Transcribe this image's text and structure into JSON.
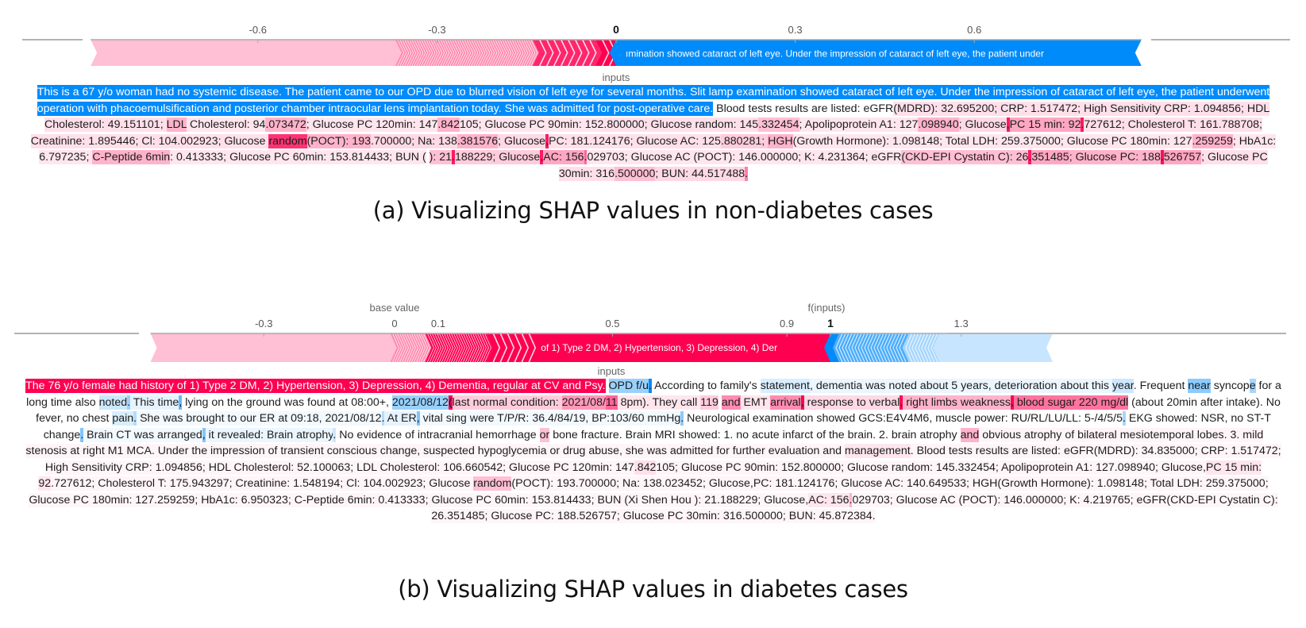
{
  "chart_data": [
    {
      "type": "force_plot",
      "id": "a",
      "caption": "(a) Visualizing SHAP values in non-diabetes cases",
      "axis_ticks": [
        {
          "value": -0.6,
          "label": "-0.6",
          "bold": false
        },
        {
          "value": -0.3,
          "label": "-0.3",
          "bold": false
        },
        {
          "value": 0,
          "label": "0",
          "bold": true
        },
        {
          "value": 0.3,
          "label": "0.3",
          "bold": false
        },
        {
          "value": 0.6,
          "label": "0.6",
          "bold": false
        }
      ],
      "xlim": [
        -0.88,
        0.88
      ],
      "output_value": 0,
      "base_value_label": "",
      "f_inputs_label": "",
      "inputs_label": "inputs",
      "positive_color": "#ff0051",
      "negative_color": "#008bfb",
      "positive_segments": [
        {
          "from": -0.88,
          "to": -0.37,
          "shade": 0.25,
          "style": "solid"
        },
        {
          "from": -0.37,
          "to": -0.14,
          "shade": 0.45,
          "style": "dense-chevrons"
        },
        {
          "from": -0.14,
          "to": -0.035,
          "shade": 0.85,
          "style": "chevrons"
        },
        {
          "from": -0.035,
          "to": 0.0,
          "shade": 1.0,
          "style": "chevrons"
        }
      ],
      "negative_segments": [
        {
          "from": 0.0,
          "to": 0.88,
          "shade": 1.0,
          "style": "solid",
          "label": "ımination showed cataract of left eye. Under the impression of cataract of left eye, the patient under"
        }
      ],
      "text_tokens": [
        {
          "t": "This is a 67 y/o woman had no systemic disease. The patient came to our OPD due to blurred vision of left eye for several months. Slit lamp examination showed cataract of left eye. Under the impression of cataract of left eye, the patient underwent operation with phacoemulsification and posterior chamber intraocular lens implantation today. She was admitted for post-operative care.",
          "v": -1.0
        },
        {
          "t": " Blood tests results are listed: eGFR",
          "v": 0
        },
        {
          "t": "(MDRD): 32.695200; CRP: 1.517472; High Sensitivity CRP: 1.094856; HDL Cholesterol: 49.151101; ",
          "v": 0.12
        },
        {
          "t": "LDL",
          "v": 0.3
        },
        {
          "t": " Cholesterol: 94",
          "v": 0.1
        },
        {
          "t": ".073472",
          "v": 0.3
        },
        {
          "t": "; Glucose PC 120min: 147",
          "v": 0.1
        },
        {
          "t": ".842",
          "v": 0.3
        },
        {
          "t": "105; Glucose PC 90min: 152",
          "v": 0.1
        },
        {
          "t": ".800000; Glucose random: 145",
          "v": 0.12
        },
        {
          "t": ".332454",
          "v": 0.25
        },
        {
          "t": "; Apolipoprotein A1: 127",
          "v": 0.1
        },
        {
          "t": ".098940",
          "v": 0.3
        },
        {
          "t": "; Glucose",
          "v": 0.15
        },
        {
          "t": ",",
          "v": 0.9
        },
        {
          "t": "PC 15 min: 92",
          "v": 0.35
        },
        {
          "t": ".",
          "v": 0.9
        },
        {
          "t": "727612; Cholesterol T: 161.788708; Creatinine: 1.895446; Cl: 104.002923; Glucose ",
          "v": 0.12
        },
        {
          "t": "random",
          "v": 0.8
        },
        {
          "t": "(POCT): 193",
          "v": 0.3
        },
        {
          "t": ".700000; Na: 138",
          "v": 0.15
        },
        {
          "t": ".381576",
          "v": 0.3
        },
        {
          "t": "; Glucose",
          "v": 0.15
        },
        {
          "t": ",",
          "v": 0.9
        },
        {
          "t": "PC: 181.124176; Glucose AC: 125",
          "v": 0.12
        },
        {
          "t": ".880281; ",
          "v": 0.2
        },
        {
          "t": "HGH",
          "v": 0.3
        },
        {
          "t": "(Growth Hormone): 1.098148; Total LDH: 259.375000; Glucose PC 180min: 127",
          "v": 0.1
        },
        {
          "t": ".259259",
          "v": 0.3
        },
        {
          "t": "; HbA1c: 6.797235; ",
          "v": 0.1
        },
        {
          "t": "C-Peptide 6min",
          "v": 0.3
        },
        {
          "t": ": 0.413333; Glucose PC 60min: 153.814433; BUN (",
          "v": 0.1
        },
        {
          "t": "                    ",
          "v": 0
        },
        {
          "t": "): 21",
          "v": 0.25
        },
        {
          "t": ".",
          "v": 0.9
        },
        {
          "t": "188229; Glucose",
          "v": 0.2
        },
        {
          "t": ",",
          "v": 0.9
        },
        {
          "t": "AC: 156",
          "v": 0.35
        },
        {
          "t": ".",
          "v": 0.6
        },
        {
          "t": "029703; Glucose AC (POCT): 146.000000; K: 4.231364; eGFR",
          "v": 0.1
        },
        {
          "t": "(CKD-EPI Cystatin C): 26",
          "v": 0.25
        },
        {
          "t": ".",
          "v": 0.9
        },
        {
          "t": "351485",
          "v": 0.35
        },
        {
          "t": "; Glucose PC: 188",
          "v": 0.3
        },
        {
          "t": ".",
          "v": 0.95
        },
        {
          "t": "526757",
          "v": 0.35
        },
        {
          "t": "; Glucose PC 30min: 316",
          "v": 0.12
        },
        {
          "t": ".500000",
          "v": 0.25
        },
        {
          "t": "; BUN: 44.517488",
          "v": 0.15
        },
        {
          "t": ".",
          "v": 0.5
        }
      ]
    },
    {
      "type": "force_plot",
      "id": "b",
      "caption": "(b) Visualizing SHAP values in diabetes cases",
      "axis_ticks": [
        {
          "value": -0.3,
          "label": "-0.3",
          "bold": false
        },
        {
          "value": 0,
          "label": "0",
          "bold": false
        },
        {
          "value": 0.1,
          "label": "0.1",
          "bold": false
        },
        {
          "value": 0.5,
          "label": "0.5",
          "bold": false
        },
        {
          "value": 0.9,
          "label": "0.9",
          "bold": false
        },
        {
          "value": 1,
          "label": "1",
          "bold": true
        },
        {
          "value": 1.3,
          "label": "1.3",
          "bold": false
        }
      ],
      "xlim": [
        -0.86,
        1.95
      ],
      "output_value": 1,
      "base_value": 0,
      "base_value_label": "base value",
      "f_inputs_label": "f(inputs)",
      "inputs_label": "inputs",
      "positive_color": "#ff0051",
      "negative_color": "#008bfb",
      "positive_segments": [
        {
          "from": -0.56,
          "to": -0.01,
          "shade": 0.25,
          "style": "solid"
        },
        {
          "from": -0.01,
          "to": 0.07,
          "shade": 0.45,
          "style": "dense-chevrons"
        },
        {
          "from": 0.07,
          "to": 0.21,
          "shade": 1.0,
          "style": "dense-chevrons"
        },
        {
          "from": 0.21,
          "to": 0.31,
          "shade": 1.0,
          "style": "chevrons"
        },
        {
          "from": 0.31,
          "to": 1.0,
          "shade": 1.0,
          "style": "solid",
          "label": "of 1) Type 2 DM, 2) Hypertension, 3) Depression, 4) Der"
        }
      ],
      "negative_segments": [
        {
          "from": 1.0,
          "to": 1.02,
          "shade": 1.0,
          "style": "solid"
        },
        {
          "from": 1.02,
          "to": 1.18,
          "shade": 0.7,
          "style": "dense-chevrons"
        },
        {
          "from": 1.18,
          "to": 1.25,
          "shade": 0.35,
          "style": "dense-chevrons"
        },
        {
          "from": 1.25,
          "to": 1.51,
          "shade": 0.22,
          "style": "solid"
        }
      ],
      "text_tokens": [
        {
          "t": "The 76 y/o female had history of 1) Type 2 DM, 2) Hypertension, 3) Depression, 4) Dementia, regular at CV and Psy.",
          "v": 1.0
        },
        {
          "t": " ",
          "v": 0
        },
        {
          "t": "OPD f/u",
          "v": -0.4
        },
        {
          "t": ".",
          "v": -1.0
        },
        {
          "t": " According to family's ",
          "v": 0
        },
        {
          "t": "statement",
          "v": -0.15
        },
        {
          "t": ", dementia was noted about 5 years, deterioration about this ",
          "v": -0.08
        },
        {
          "t": "year",
          "v": -0.2
        },
        {
          "t": ". Frequent ",
          "v": 0
        },
        {
          "t": "near",
          "v": -0.45
        },
        {
          "t": " syncop",
          "v": 0
        },
        {
          "t": "e",
          "v": -0.35
        },
        {
          "t": " for a long time also ",
          "v": 0
        },
        {
          "t": "noted",
          "v": -0.2
        },
        {
          "t": ".",
          "v": -0.4
        },
        {
          "t": " This time",
          "v": -0.1
        },
        {
          "t": ",",
          "v": -0.6
        },
        {
          "t": " lying on the ground was found at 08:00+, ",
          "v": 0
        },
        {
          "t": "2021/08/12",
          "v": -0.4
        },
        {
          "t": "(",
          "v": 1.0
        },
        {
          "t": "last normal condition: ",
          "v": 0.2
        },
        {
          "t": "2021/08/",
          "v": 0.4
        },
        {
          "t": "11",
          "v": 0.6
        },
        {
          "t": " 8pm). They call ",
          "v": 0.1
        },
        {
          "t": "119",
          "v": 0.2
        },
        {
          "t": " ",
          "v": 0
        },
        {
          "t": "and",
          "v": 0.45
        },
        {
          "t": " EMT ",
          "v": 0.1
        },
        {
          "t": "arrival",
          "v": 0.45
        },
        {
          "t": ",",
          "v": 1.0
        },
        {
          "t": " response to verbal",
          "v": 0.15
        },
        {
          "t": ",",
          "v": 1.0
        },
        {
          "t": " right limbs weakness",
          "v": 0.3
        },
        {
          "t": ",",
          "v": 1.0
        },
        {
          "t": " blood sugar 220 mg/dl",
          "v": 0.55
        },
        {
          "t": " (about 20min after intake). No fever, no chest ",
          "v": 0
        },
        {
          "t": "pain",
          "v": -0.15
        },
        {
          "t": ".",
          "v": -0.3
        },
        {
          "t": " She was brought to our ER at 09:18, 2021/08/12",
          "v": -0.05
        },
        {
          "t": ".",
          "v": -0.3
        },
        {
          "t": " At ER",
          "v": -0.1
        },
        {
          "t": ",",
          "v": -0.5
        },
        {
          "t": " vital sing were T/P/R: 36.4/84/19, BP:103/60 mmHg",
          "v": -0.05
        },
        {
          "t": ".",
          "v": -0.45
        },
        {
          "t": " Neurological examination showed GCS:E4V4M6, muscle power: RU/RL/LU/LL: 5-/4/5/5",
          "v": 0
        },
        {
          "t": ".",
          "v": -0.35
        },
        {
          "t": " EKG showed: NSR, no ST-T change",
          "v": 0
        },
        {
          "t": ".",
          "v": -0.5
        },
        {
          "t": " Brain CT was arranged",
          "v": -0.05
        },
        {
          "t": ",",
          "v": -0.5
        },
        {
          "t": " it revealed: Brain atrophy",
          "v": -0.08
        },
        {
          "t": ".",
          "v": -0.2
        },
        {
          "t": " No evidence of intracranial hemorrhage ",
          "v": 0
        },
        {
          "t": "or",
          "v": 0.25
        },
        {
          "t": " bone fracture. Brain MRI showed: 1. no acute infarct of the brain. 2. brain atrophy ",
          "v": 0
        },
        {
          "t": "and",
          "v": 0.3
        },
        {
          "t": " obvious atrophy of bilateral mesiotemporal lobes. 3. mild stenosis at right M1 MCA. Under the impression of transient conscious change, suspected hypoglycemia or drug abuse, she was admitted for further evaluation and ",
          "v": 0.04
        },
        {
          "t": "management",
          "v": 0.1
        },
        {
          "t": ". Blood tests results are listed: eGFR(MDRD): 34.835000; CRP: 1.517472; High Sensitivity CRP: 1.094856; HDL Cholesterol: 52.100063; LDL Cholesterol: 106.660542; Glucose PC 120min: 147",
          "v": 0.04
        },
        {
          "t": ".842",
          "v": 0.12
        },
        {
          "t": "105; Glucose PC 90min: 152.800000; Glucose random: 145.332454; Apolipoprotein A1: 127.098940; Glucose,",
          "v": 0.04
        },
        {
          "t": "PC 15 min: 92",
          "v": 0.1
        },
        {
          "t": ".727612; Cholesterol T: 175.943297; Creatinine: 1.548194; Cl: 104.002923; Glucose ",
          "v": 0.04
        },
        {
          "t": "random",
          "v": 0.25
        },
        {
          "t": "(POCT): 193.700000; Na: 138.023452; Glucose,PC: 181.124176; Glucose AC: 140.649533; HGH(Growth Hormone): 1.098148; Total LDH: 259.375000; Glucose PC 180min: 127.259259; HbA1c: 6.950323; C-Peptide 6min: 0.413333; Glucose PC 60min: 153.814433; BUN (Xi Shen Hou ): 21.188229; Glucose,",
          "v": 0.04
        },
        {
          "t": "AC: 156",
          "v": 0.1
        },
        {
          "t": ".",
          "v": 0.3
        },
        {
          "t": "029703; Glucose AC (POCT): 146.000000; K: 4.219765; eGFR(CKD-EPI Cystatin C): 26.351485; Glucose PC: 188.526757; Glucose PC 30min: 316.500000; BUN: 45.872384.",
          "v": 0.04
        }
      ]
    }
  ]
}
